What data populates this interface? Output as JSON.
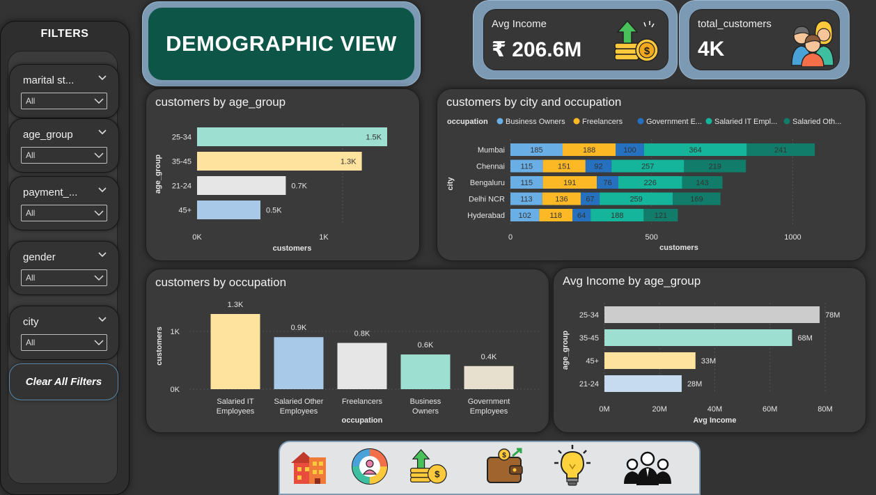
{
  "sidebar": {
    "title": "FILTERS",
    "filters": [
      {
        "label": "marital st...",
        "value": "All"
      },
      {
        "label": "age_group",
        "value": "All"
      },
      {
        "label": "payment_...",
        "value": "All"
      },
      {
        "label": "gender",
        "value": "All"
      },
      {
        "label": "city",
        "value": "All"
      }
    ],
    "clear_label": "Clear All Filters"
  },
  "header": {
    "title": "DEMOGRAPHIC VIEW"
  },
  "kpis": {
    "avg_income": {
      "label": "Avg Income",
      "value": "₹ 206.6M",
      "icon": "money-growth-icon"
    },
    "total_customers": {
      "label": "total_customers",
      "value": "4K",
      "icon": "customers-group-icon"
    }
  },
  "colors": {
    "teal_light": "#9de0d2",
    "yellow_light": "#fde39d",
    "grey_light": "#e6e6e6",
    "blue_light": "#a9c9e8",
    "occ_business": "#6aaee6",
    "occ_freelancers": "#fdb825",
    "occ_government": "#2571bf",
    "occ_salaried_it": "#14b59a",
    "occ_salaried_other": "#117c6a"
  },
  "chart_data": [
    {
      "id": "age-chart",
      "type": "bar",
      "orientation": "horizontal",
      "title": "customers by age_group",
      "xlabel": "customers",
      "ylabel": "age_group",
      "categories": [
        "25-34",
        "35-45",
        "21-24",
        "45+"
      ],
      "values": [
        1.5,
        1.3,
        0.7,
        0.5
      ],
      "value_labels": [
        "1.5K",
        "1.3K",
        "0.7K",
        "0.5K"
      ],
      "xlim": [
        0,
        1.5
      ],
      "xticks": [
        {
          "v": 0,
          "label": "0K"
        },
        {
          "v": 1,
          "label": "1K"
        }
      ],
      "colors": [
        "#9de0d2",
        "#fde39d",
        "#e6e6e6",
        "#a9c9e8"
      ]
    },
    {
      "id": "city-chart",
      "type": "bar",
      "orientation": "horizontal-stacked",
      "title": "customers by city and occupation",
      "legend_title": "occupation",
      "xlabel": "customers",
      "ylabel": "city",
      "categories": [
        "Mumbai",
        "Chennai",
        "Bengaluru",
        "Delhi NCR",
        "Hyderabad"
      ],
      "series": [
        {
          "name": "Business Owners",
          "legend": "Business Owners",
          "color": "#6aaee6",
          "values": [
            185,
            115,
            115,
            113,
            102
          ]
        },
        {
          "name": "Freelancers",
          "legend": "Freelancers",
          "color": "#fdb825",
          "values": [
            188,
            151,
            191,
            136,
            118
          ]
        },
        {
          "name": "Government Employees",
          "legend": "Government E...",
          "color": "#2571bf",
          "values": [
            100,
            92,
            76,
            67,
            64
          ]
        },
        {
          "name": "Salaried IT Employees",
          "legend": "Salaried IT Empl...",
          "color": "#14b59a",
          "values": [
            364,
            257,
            226,
            259,
            188
          ]
        },
        {
          "name": "Salaried Other Employees",
          "legend": "Salaried Oth...",
          "color": "#117c6a",
          "values": [
            241,
            219,
            143,
            169,
            121
          ]
        }
      ],
      "xlim": [
        0,
        1100
      ],
      "xticks": [
        {
          "v": 0,
          "label": "0"
        },
        {
          "v": 500,
          "label": "500"
        },
        {
          "v": 1000,
          "label": "1000"
        }
      ]
    },
    {
      "id": "occupation-chart",
      "type": "bar",
      "orientation": "vertical",
      "title": "customers by occupation",
      "xlabel": "occupation",
      "ylabel": "customers",
      "categories": [
        [
          "Salaried IT",
          "Employees"
        ],
        [
          "Salaried Other",
          "Employees"
        ],
        [
          "Freelancers"
        ],
        [
          "Business",
          "Owners"
        ],
        [
          "Government",
          "Employees"
        ]
      ],
      "values": [
        1.3,
        0.9,
        0.8,
        0.6,
        0.4
      ],
      "value_labels": [
        "1.3K",
        "0.9K",
        "0.8K",
        "0.6K",
        "0.4K"
      ],
      "ylim": [
        0,
        1.3
      ],
      "yticks": [
        {
          "v": 0,
          "label": "0K"
        },
        {
          "v": 1,
          "label": "1K"
        }
      ],
      "colors": [
        "#fde39d",
        "#a9c9e8",
        "#e6e6e6",
        "#9de0d2",
        "#e8e0cf"
      ]
    },
    {
      "id": "income-chart",
      "type": "bar",
      "orientation": "horizontal",
      "title": "Avg Income by age_group",
      "xlabel": "Avg Income",
      "ylabel": "age_group",
      "categories": [
        "25-34",
        "35-45",
        "45+",
        "21-24"
      ],
      "values": [
        78,
        68,
        33,
        28
      ],
      "value_labels": [
        "78M",
        "68M",
        "33M",
        "28M"
      ],
      "xlim": [
        0,
        80
      ],
      "xticks": [
        {
          "v": 0,
          "label": "0M"
        },
        {
          "v": 20,
          "label": "20M"
        },
        {
          "v": 40,
          "label": "40M"
        },
        {
          "v": 60,
          "label": "60M"
        },
        {
          "v": 80,
          "label": "80M"
        }
      ],
      "colors": [
        "#cccccc",
        "#9de0d2",
        "#fde39d",
        "#c6daf0"
      ]
    }
  ],
  "bottom_nav": {
    "items": [
      {
        "icon": "building-icon"
      },
      {
        "icon": "pie-people-icon"
      },
      {
        "icon": "money-growth-icon"
      },
      {
        "icon": "wallet-icon"
      },
      {
        "icon": "lightbulb-icon"
      },
      {
        "icon": "team-icon"
      }
    ]
  }
}
